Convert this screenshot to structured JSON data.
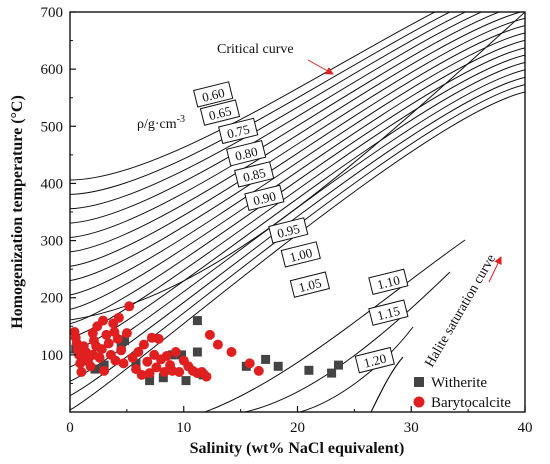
{
  "chart_data": {
    "type": "scatter",
    "xlabel": "Salinity (wt% NaCl equivalent)",
    "ylabel": "Homogenization temperature (°C)",
    "xlim": [
      0,
      40
    ],
    "ylim": [
      0,
      700
    ],
    "x_ticks": [
      "0",
      "10",
      "20",
      "30",
      "40"
    ],
    "y_ticks": [
      "100",
      "200",
      "300",
      "400",
      "500",
      "600",
      "700"
    ],
    "grid": false,
    "legend": "bottom-right",
    "density_unit_label": "ρ/g·cm",
    "density_unit_exp": "-3",
    "annotations": {
      "critical_curve": "Critical curve",
      "halite_curve": "Halite saturation curve"
    },
    "isochore_labels": [
      {
        "text": "0.60",
        "x": 12.6,
        "y": 555
      },
      {
        "text": "0.65",
        "x": 13.2,
        "y": 523
      },
      {
        "text": "0.75",
        "x": 14.8,
        "y": 491
      },
      {
        "text": "0.80",
        "x": 15.5,
        "y": 452
      },
      {
        "text": "0.85",
        "x": 16.2,
        "y": 415
      },
      {
        "text": "0.90",
        "x": 17.1,
        "y": 374
      },
      {
        "text": "0.95",
        "x": 19.2,
        "y": 317
      },
      {
        "text": "1.00",
        "x": 20.3,
        "y": 275
      },
      {
        "text": "1.05",
        "x": 21.1,
        "y": 222
      },
      {
        "text": "1.10",
        "x": 28.0,
        "y": 227
      },
      {
        "text": "1.15",
        "x": 28.0,
        "y": 173
      },
      {
        "text": "1.20",
        "x": 26.8,
        "y": 90
      }
    ],
    "series": [
      {
        "name": "Witherite",
        "color": "#444444",
        "marker": "square",
        "points": [
          [
            0.5,
            110
          ],
          [
            1.0,
            95
          ],
          [
            1.5,
            90
          ],
          [
            2.2,
            75
          ],
          [
            3.0,
            82
          ],
          [
            4.5,
            115
          ],
          [
            4.8,
            125
          ],
          [
            5.8,
            85
          ],
          [
            7.0,
            55
          ],
          [
            8.2,
            60
          ],
          [
            9.0,
            100
          ],
          [
            9.8,
            100
          ],
          [
            10.2,
            55
          ],
          [
            11.2,
            160
          ],
          [
            11.2,
            105
          ],
          [
            11.7,
            65
          ],
          [
            15.5,
            80
          ],
          [
            17.2,
            92
          ],
          [
            18.3,
            80
          ],
          [
            21.0,
            73
          ],
          [
            23.0,
            68
          ],
          [
            23.6,
            82
          ]
        ]
      },
      {
        "name": "Barytocalcite",
        "color": "#e02020",
        "marker": "circle",
        "points": [
          [
            0.4,
            140
          ],
          [
            0.5,
            130
          ],
          [
            0.6,
            120
          ],
          [
            0.7,
            110
          ],
          [
            0.8,
            100
          ],
          [
            0.9,
            85
          ],
          [
            1.0,
            70
          ],
          [
            1.1,
            95
          ],
          [
            1.2,
            115
          ],
          [
            1.4,
            105
          ],
          [
            1.6,
            92
          ],
          [
            1.8,
            80
          ],
          [
            2.0,
            100
          ],
          [
            2.0,
            138
          ],
          [
            2.1,
            125
          ],
          [
            2.3,
            115
          ],
          [
            2.4,
            150
          ],
          [
            2.6,
            95
          ],
          [
            2.8,
            110
          ],
          [
            2.9,
            160
          ],
          [
            3.0,
            72
          ],
          [
            3.2,
            135
          ],
          [
            3.4,
            120
          ],
          [
            3.6,
            100
          ],
          [
            3.8,
            155
          ],
          [
            3.9,
            140
          ],
          [
            4.0,
            90
          ],
          [
            4.2,
            128
          ],
          [
            4.3,
            165
          ],
          [
            4.5,
            108
          ],
          [
            4.7,
            85
          ],
          [
            5.0,
            138
          ],
          [
            5.2,
            185
          ],
          [
            5.5,
            95
          ],
          [
            5.8,
            75
          ],
          [
            6.0,
            105
          ],
          [
            6.3,
            65
          ],
          [
            6.5,
            118
          ],
          [
            6.8,
            88
          ],
          [
            7.0,
            68
          ],
          [
            7.2,
            130
          ],
          [
            7.4,
            100
          ],
          [
            7.6,
            78
          ],
          [
            7.8,
            128
          ],
          [
            8.0,
            92
          ],
          [
            8.3,
            70
          ],
          [
            8.5,
            98
          ],
          [
            8.8,
            82
          ],
          [
            9.0,
            72
          ],
          [
            9.3,
            105
          ],
          [
            9.6,
            70
          ],
          [
            10.0,
            90
          ],
          [
            10.4,
            80
          ],
          [
            10.8,
            72
          ],
          [
            11.2,
            68
          ],
          [
            11.6,
            70
          ],
          [
            12.0,
            62
          ],
          [
            12.3,
            135
          ],
          [
            13.0,
            118
          ],
          [
            14.2,
            105
          ],
          [
            15.8,
            85
          ],
          [
            16.6,
            72
          ]
        ]
      }
    ]
  }
}
